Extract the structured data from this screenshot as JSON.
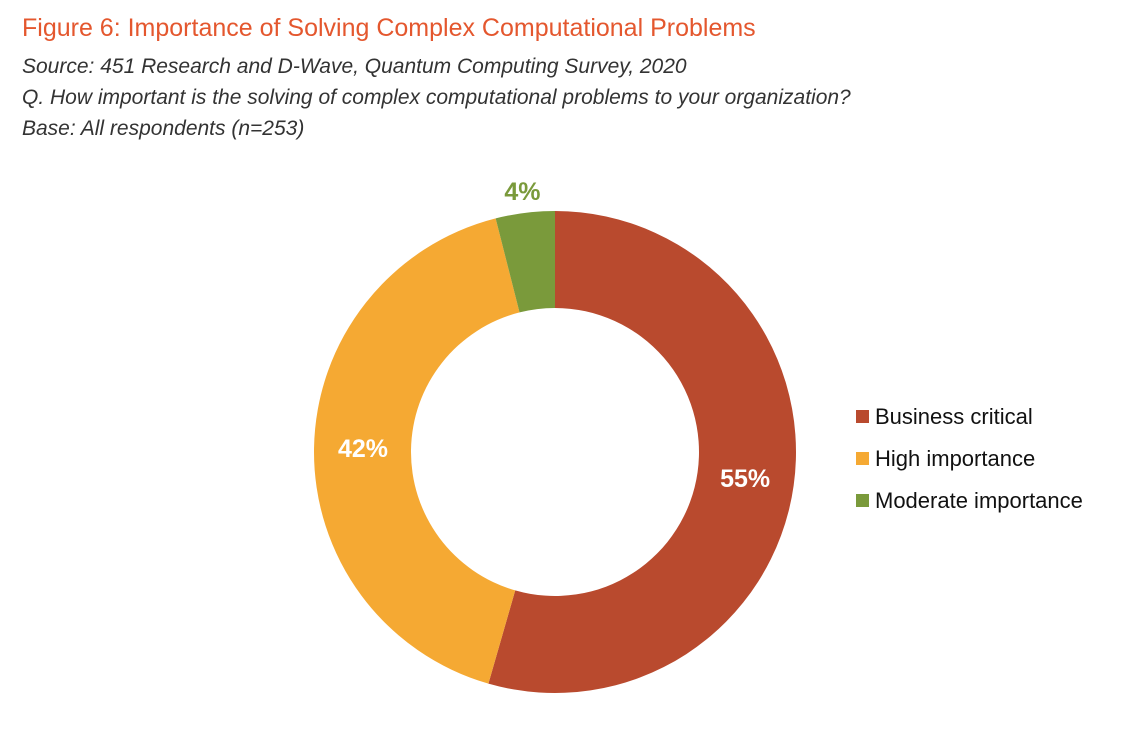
{
  "header": {
    "title": "Figure 6: Importance of Solving Complex Computational Problems",
    "source": "Source: 451 Research and D-Wave, Quantum Computing Survey, 2020",
    "question": "Q. How important is the solving of complex computational problems to your organization?",
    "base": "Base: All respondents (n=253)"
  },
  "chart_data": {
    "type": "pie",
    "variant": "donut",
    "legend_position": "right",
    "categories": [
      "Business critical",
      "High importance",
      "Moderate importance"
    ],
    "values": [
      55,
      42,
      4
    ],
    "labels": [
      "55%",
      "42%",
      "4%"
    ],
    "colors": [
      "#b94a2e",
      "#f5a933",
      "#7a9a3b"
    ],
    "label_colors": [
      "#ffffff",
      "#ffffff",
      "#7a9a3b"
    ]
  }
}
